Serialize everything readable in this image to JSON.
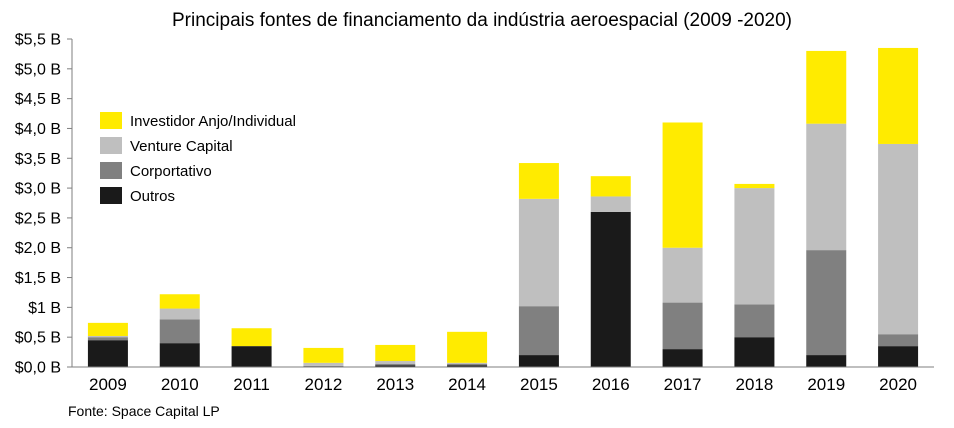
{
  "chart_data": {
    "type": "bar",
    "stacked": true,
    "title": "Principais fontes de financiamento da indústria aeroespacial (2009 -2020)",
    "source": "Fonte: Space Capital LP",
    "xlabel": "",
    "ylabel": "",
    "ylim": [
      0,
      5.5
    ],
    "y_ticks": [
      {
        "value": 0,
        "label": "$0,0 B"
      },
      {
        "value": 0.5,
        "label": "$0,5 B"
      },
      {
        "value": 1,
        "label": "$1 B"
      },
      {
        "value": 1.5,
        "label": "$1,5 B"
      },
      {
        "value": 2,
        "label": "$2,0 B"
      },
      {
        "value": 2.5,
        "label": "$2,5 B"
      },
      {
        "value": 3,
        "label": "$3,0 B"
      },
      {
        "value": 3.5,
        "label": "$3,5 B"
      },
      {
        "value": 4,
        "label": "$4,0 B"
      },
      {
        "value": 4.5,
        "label": "$4,5 B"
      },
      {
        "value": 5,
        "label": "$5,0 B"
      },
      {
        "value": 5.5,
        "label": "$5,5 B"
      }
    ],
    "grid": false,
    "legend_position": "top-left",
    "categories": [
      "2009",
      "2010",
      "2011",
      "2012",
      "2013",
      "2014",
      "2015",
      "2016",
      "2017",
      "2018",
      "2019",
      "2020"
    ],
    "series": [
      {
        "name": "Outros",
        "color": "#1a1a1a",
        "values": [
          0.45,
          0.4,
          0.35,
          0.0,
          0.03,
          0.03,
          0.2,
          2.6,
          0.3,
          0.5,
          0.2,
          0.35
        ]
      },
      {
        "name": "Corportativo",
        "color": "#808080",
        "values": [
          0.05,
          0.4,
          0.0,
          0.02,
          0.02,
          0.02,
          0.82,
          0.0,
          0.78,
          0.55,
          1.76,
          0.2
        ]
      },
      {
        "name": "Venture Capital",
        "color": "#bfbfbf",
        "values": [
          0.02,
          0.18,
          0.0,
          0.05,
          0.05,
          0.02,
          1.8,
          0.26,
          0.92,
          1.95,
          2.12,
          3.19
        ]
      },
      {
        "name": "Investidor Anjo/Individual",
        "color": "#ffeb00",
        "values": [
          0.22,
          0.24,
          0.3,
          0.25,
          0.27,
          0.52,
          0.6,
          0.34,
          2.1,
          0.07,
          1.22,
          1.61
        ]
      }
    ],
    "legend_order": [
      "Investidor Anjo/Individual",
      "Venture Capital",
      "Corportativo",
      "Outros"
    ]
  }
}
